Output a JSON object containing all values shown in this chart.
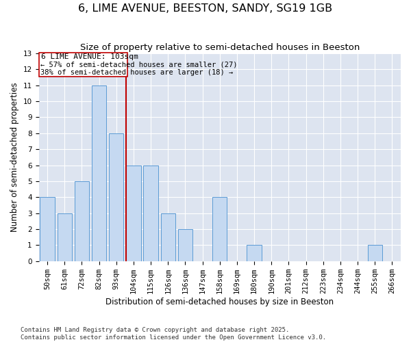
{
  "title": "6, LIME AVENUE, BEESTON, SANDY, SG19 1GB",
  "subtitle": "Size of property relative to semi-detached houses in Beeston",
  "xlabel": "Distribution of semi-detached houses by size in Beeston",
  "ylabel": "Number of semi-detached properties",
  "categories": [
    "50sqm",
    "61sqm",
    "72sqm",
    "82sqm",
    "93sqm",
    "104sqm",
    "115sqm",
    "126sqm",
    "136sqm",
    "147sqm",
    "158sqm",
    "169sqm",
    "180sqm",
    "190sqm",
    "201sqm",
    "212sqm",
    "223sqm",
    "234sqm",
    "244sqm",
    "255sqm",
    "266sqm"
  ],
  "values": [
    4,
    3,
    5,
    11,
    8,
    6,
    6,
    3,
    2,
    0,
    4,
    0,
    1,
    0,
    0,
    0,
    0,
    0,
    0,
    1,
    0
  ],
  "bar_color": "#c5d9f1",
  "bar_edgecolor": "#5b9bd5",
  "ref_line_color": "#c00000",
  "box_edgecolor": "#c00000",
  "reference_label": "6 LIME AVENUE: 103sqm",
  "annotation_smaller": "← 57% of semi-detached houses are smaller (27)",
  "annotation_larger": "38% of semi-detached houses are larger (18) →",
  "ylim": [
    0,
    13
  ],
  "yticks": [
    0,
    1,
    2,
    3,
    4,
    5,
    6,
    7,
    8,
    9,
    10,
    11,
    12,
    13
  ],
  "footnote1": "Contains HM Land Registry data © Crown copyright and database right 2025.",
  "footnote2": "Contains public sector information licensed under the Open Government Licence v3.0.",
  "bg_color": "#dde4f0",
  "title_fontsize": 11.5,
  "subtitle_fontsize": 9.5,
  "axis_label_fontsize": 8.5,
  "tick_fontsize": 7.5,
  "annotation_fontsize": 8.0,
  "footnote_fontsize": 6.5
}
